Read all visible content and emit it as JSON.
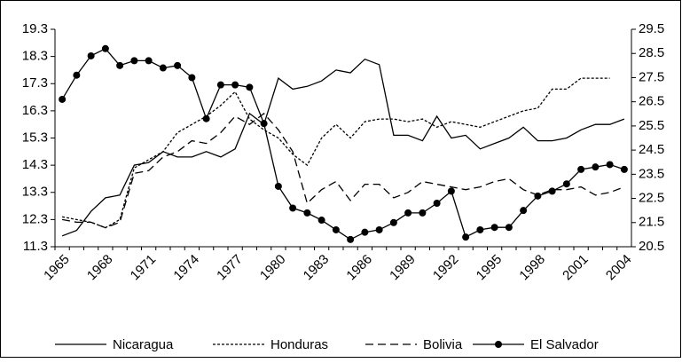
{
  "chart_data": {
    "type": "line",
    "categories": [
      1965,
      null,
      null,
      1968,
      null,
      null,
      1971,
      null,
      null,
      1974,
      null,
      null,
      1977,
      null,
      null,
      1980,
      null,
      null,
      1983,
      null,
      null,
      1986,
      null,
      null,
      1989,
      null,
      null,
      1992,
      null,
      null,
      1995,
      null,
      null,
      1998,
      null,
      null,
      2001,
      null,
      null,
      2004
    ],
    "series": [
      {
        "name": "Nicaragua",
        "color": "#000000",
        "style": "solid",
        "values": [
          11.7,
          11.9,
          12.6,
          13.1,
          13.2,
          14.3,
          14.4,
          14.8,
          14.6,
          14.6,
          14.8,
          14.6,
          14.9,
          16.2,
          15.8,
          17.5,
          17.1,
          17.2,
          17.4,
          17.8,
          17.7,
          18.2,
          18.0,
          15.4,
          15.4,
          15.2,
          16.1,
          15.3,
          15.4,
          14.9,
          15.1,
          15.3,
          15.7,
          15.2,
          15.2,
          15.3,
          15.6,
          15.8,
          15.8,
          16.0
        ]
      },
      {
        "name": "Honduras",
        "color": "#000000",
        "style": "dotted",
        "values": [
          12.4,
          12.3,
          12.2,
          12.0,
          12.3,
          14.2,
          14.5,
          14.8,
          15.5,
          15.8,
          16.1,
          16.5,
          17.0,
          16.0,
          15.6,
          15.3,
          14.7,
          14.3,
          15.3,
          15.8,
          15.3,
          15.9,
          16.0,
          16.0,
          15.9,
          16.0,
          15.7,
          15.9,
          15.8,
          15.7,
          15.9,
          16.1,
          16.3,
          16.4,
          17.1,
          17.1,
          17.5,
          17.5,
          17.5,
          null
        ]
      },
      {
        "name": "Bolivia",
        "color": "#000000",
        "style": "dashed",
        "values": [
          12.3,
          12.2,
          12.2,
          12.0,
          12.2,
          14.0,
          14.1,
          14.6,
          14.8,
          15.2,
          15.1,
          15.5,
          16.1,
          15.8,
          16.2,
          15.6,
          14.8,
          12.9,
          13.4,
          13.7,
          13.0,
          13.6,
          13.6,
          13.1,
          13.3,
          13.7,
          13.6,
          13.5,
          13.4,
          13.5,
          13.7,
          13.8,
          13.4,
          13.2,
          13.4,
          13.4,
          13.5,
          13.2,
          13.3,
          13.5
        ]
      },
      {
        "name": "El Salvador",
        "color": "#000000",
        "style": "solid",
        "marker": "circle",
        "axis": "y2",
        "values": [
          26.6,
          27.6,
          28.4,
          28.7,
          28.0,
          28.2,
          28.2,
          27.9,
          28.0,
          27.5,
          25.8,
          27.2,
          27.2,
          27.1,
          25.6,
          23.0,
          22.1,
          21.9,
          21.6,
          21.2,
          20.8,
          21.1,
          21.2,
          21.5,
          21.9,
          21.9,
          22.3,
          22.8,
          20.9,
          21.2,
          21.3,
          21.3,
          22.0,
          22.6,
          22.8,
          23.1,
          23.7,
          23.8,
          23.9,
          23.7
        ]
      }
    ],
    "ylim": [
      11.3,
      19.3
    ],
    "yticks": [
      11.3,
      12.3,
      13.3,
      14.3,
      15.3,
      16.3,
      17.3,
      18.3,
      19.3
    ],
    "y2lim": [
      20.5,
      29.5
    ],
    "y2ticks": [
      20.5,
      21.5,
      22.5,
      23.5,
      24.5,
      25.5,
      26.5,
      27.5,
      28.5,
      29.5
    ],
    "legend": "bottom"
  }
}
